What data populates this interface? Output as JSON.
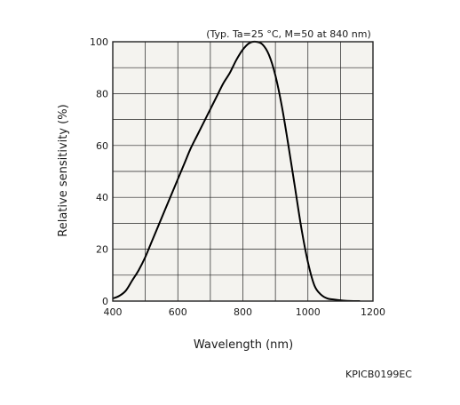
{
  "chart_data": {
    "type": "line",
    "title": "",
    "annotation": "(Typ. Ta=25 °C, M=50 at 840 nm)",
    "xlabel": "Wavelength (nm)",
    "ylabel": "Relative sensitivity (%)",
    "xlim": [
      400,
      1200
    ],
    "ylim": [
      0,
      100
    ],
    "x_ticks": [
      400,
      600,
      800,
      1000,
      1200
    ],
    "y_ticks": [
      0,
      20,
      40,
      60,
      80,
      100
    ],
    "grid": true,
    "series": [
      {
        "x": [
          400,
          420,
          440,
          460,
          480,
          500,
          520,
          540,
          560,
          580,
          600,
          620,
          640,
          660,
          680,
          700,
          720,
          740,
          760,
          780,
          800,
          820,
          840,
          860,
          880,
          900,
          920,
          940,
          960,
          980,
          1000,
          1020,
          1040,
          1060,
          1080,
          1100,
          1120,
          1140,
          1160
        ],
        "y": [
          1,
          2,
          4,
          8,
          12,
          17,
          23,
          29,
          35,
          41,
          47,
          53,
          59,
          64,
          69,
          74,
          79,
          84,
          88,
          93,
          97,
          99.5,
          100,
          99,
          95,
          87,
          75,
          60,
          44,
          28,
          15,
          6,
          2.5,
          1,
          0.6,
          0.3,
          0.1,
          0,
          0
        ]
      }
    ],
    "code": "KPICB0199EC"
  },
  "colors": {
    "plot_background": "#f4f3ef",
    "grid": "#222222",
    "curve": "#000000"
  }
}
